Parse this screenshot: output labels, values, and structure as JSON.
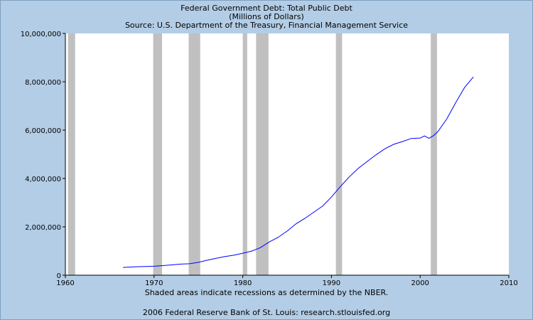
{
  "header": {
    "title": "Federal Government Debt: Total Public Debt",
    "units": "(Millions of Dollars)",
    "source": "Source: U.S. Department of the Treasury, Financial Management Service"
  },
  "footer": {
    "note": "Shaded areas indicate recessions as determined by the NBER.",
    "credit": "2006 Federal Reserve Bank of St. Louis: research.stlouisfed.org"
  },
  "colors": {
    "background": "#b3cde6",
    "plot_bg": "#ffffff",
    "line": "#0000ff",
    "recession": "#c0c0c0"
  },
  "chart_data": {
    "type": "line",
    "title": "Federal Government Debt: Total Public Debt",
    "subtitle": "(Millions of Dollars)",
    "xlabel": "",
    "ylabel": "",
    "xlim": [
      1960,
      2010
    ],
    "ylim": [
      0,
      10000000
    ],
    "x_ticks": [
      1960,
      1970,
      1980,
      1990,
      2000,
      2010
    ],
    "x_tick_labels": [
      "1960",
      "1970",
      "1980",
      "1990",
      "2000",
      "2010"
    ],
    "y_ticks": [
      0,
      2000000,
      4000000,
      6000000,
      8000000,
      10000000
    ],
    "y_tick_labels": [
      "0",
      "2,000,000",
      "4,000,000",
      "6,000,000",
      "8,000,000",
      "10,000,000"
    ],
    "grid": false,
    "recessions": [
      [
        1960.3,
        1961.1
      ],
      [
        1969.9,
        1970.9
      ],
      [
        1973.9,
        1975.2
      ],
      [
        1980.0,
        1980.5
      ],
      [
        1981.5,
        1982.9
      ],
      [
        1990.5,
        1991.2
      ],
      [
        2001.2,
        2001.9
      ]
    ],
    "series": [
      {
        "x": [
          1966.5,
          1967,
          1968,
          1969,
          1970,
          1971,
          1972,
          1973,
          1974,
          1975,
          1976,
          1977,
          1978,
          1979,
          1980,
          1981,
          1982,
          1983,
          1984,
          1985,
          1986,
          1987,
          1988,
          1989,
          1990,
          1991,
          1992,
          1993,
          1994,
          1995,
          1996,
          1997,
          1998,
          1999,
          2000,
          2000.5,
          2001,
          2001.5,
          2002,
          2003,
          2004,
          2005,
          2006
        ],
        "y": [
          320000,
          330000,
          350000,
          360000,
          370000,
          398000,
          427000,
          458000,
          475000,
          533000,
          620000,
          699000,
          772000,
          827000,
          908000,
          998000,
          1142000,
          1377000,
          1572000,
          1823000,
          2125000,
          2350000,
          2602000,
          2857000,
          3233000,
          3665000,
          4065000,
          4411000,
          4693000,
          4974000,
          5225000,
          5413000,
          5526000,
          5656000,
          5674000,
          5760000,
          5660000,
          5770000,
          5940000,
          6460000,
          7130000,
          7760000,
          8200000
        ]
      }
    ]
  }
}
